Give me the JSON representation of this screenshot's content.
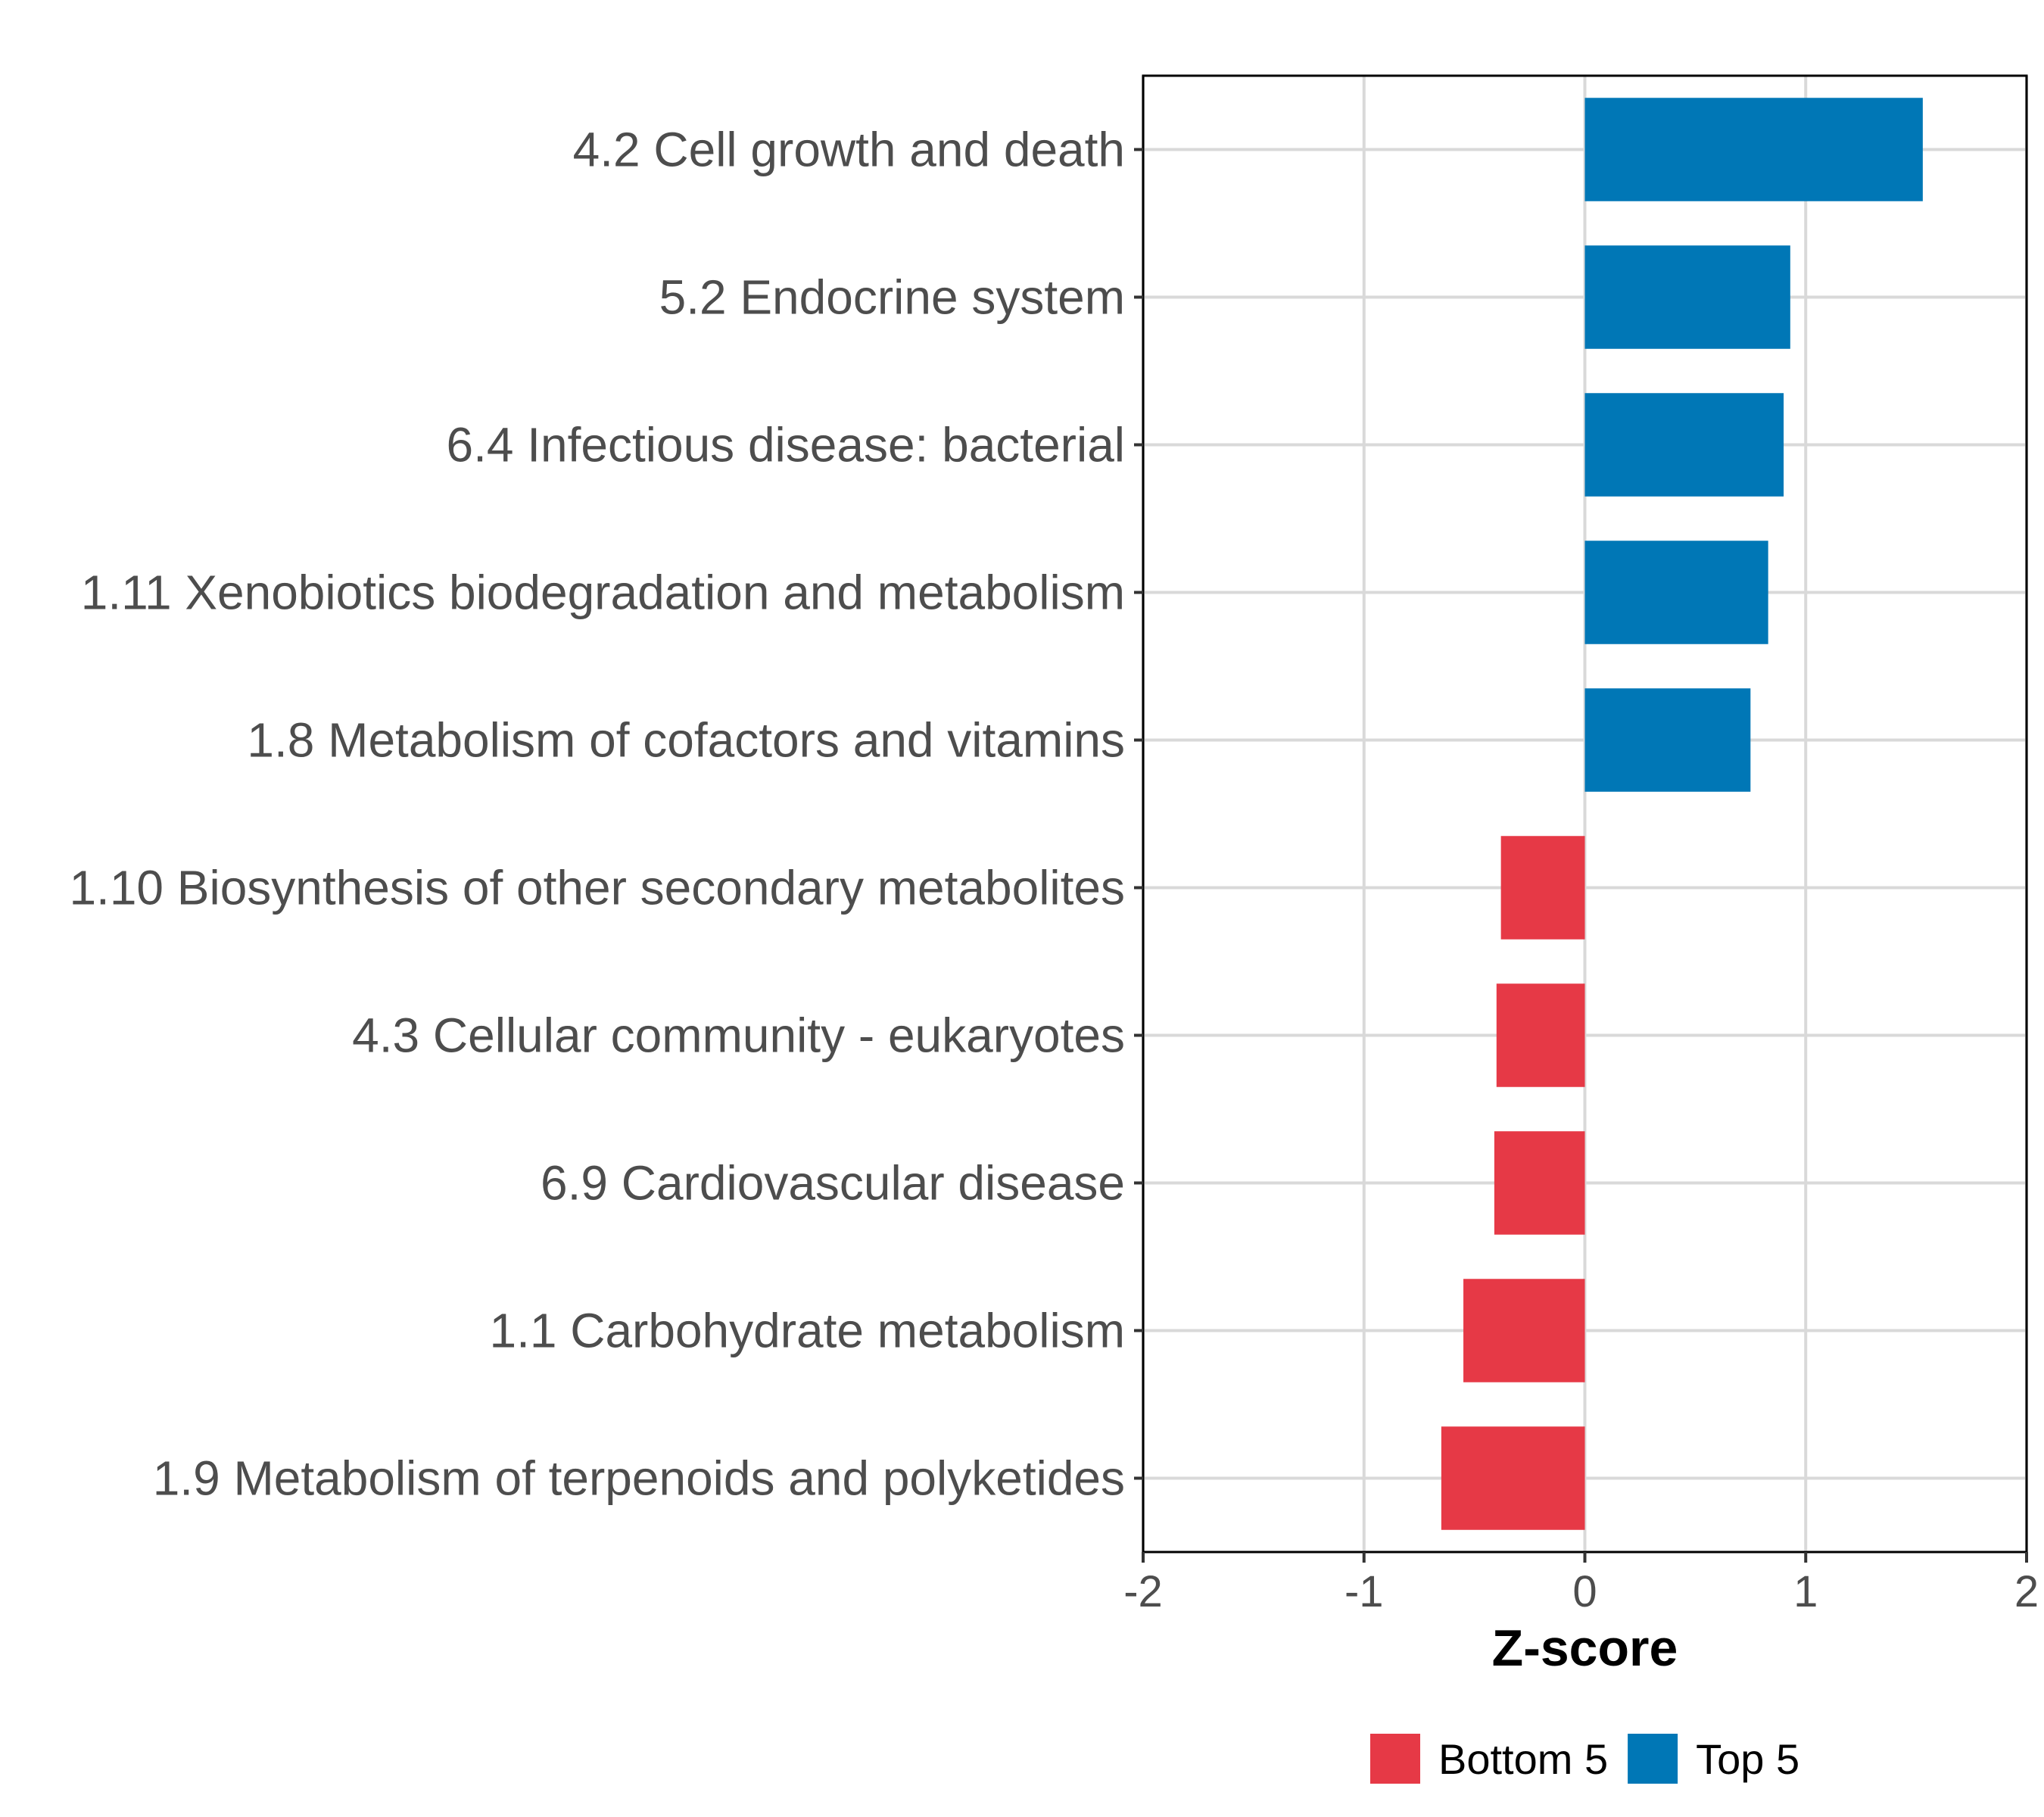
{
  "chart_data": {
    "type": "bar",
    "orientation": "horizontal",
    "title": "",
    "xlabel": "Z-score",
    "ylabel": "",
    "xlim": [
      -2,
      2
    ],
    "xticks": [
      -2,
      -1,
      0,
      1,
      2
    ],
    "xtick_labels": [
      "-2",
      "-1",
      "0",
      "1",
      "2"
    ],
    "grid": true,
    "categories": [
      "4.2 Cell growth and death",
      "5.2 Endocrine system",
      "6.4 Infectious disease: bacterial",
      "1.11 Xenobiotics biodegradation and metabolism",
      "1.8 Metabolism of cofactors and vitamins",
      "1.10 Biosynthesis of other secondary metabolites",
      "4.3 Cellular community - eukaryotes",
      "6.9 Cardiovascular disease",
      "1.1 Carbohydrate metabolism",
      "1.9 Metabolism of terpenoids and polyketides"
    ],
    "values": [
      1.53,
      0.93,
      0.9,
      0.83,
      0.75,
      -0.38,
      -0.4,
      -0.41,
      -0.55,
      -0.65
    ],
    "groups": [
      "Top 5",
      "Top 5",
      "Top 5",
      "Top 5",
      "Top 5",
      "Bottom 5",
      "Bottom 5",
      "Bottom 5",
      "Bottom 5",
      "Bottom 5"
    ],
    "legend": {
      "position": "bottom",
      "entries": [
        {
          "name": "Bottom 5",
          "color": "#E63946"
        },
        {
          "name": "Top 5",
          "color": "#0077B6"
        }
      ]
    }
  }
}
